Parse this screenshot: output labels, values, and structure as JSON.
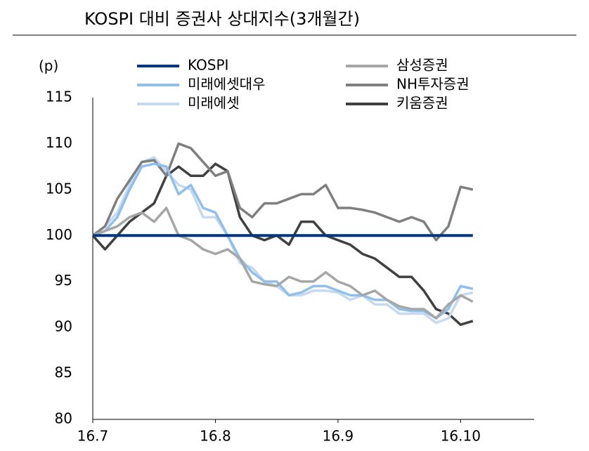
{
  "chart_data": {
    "type": "line",
    "title": "KOSPI 대비 증권사 상대지수(3개월간)",
    "ylabel": "(p)",
    "x": [
      0,
      0.1,
      0.2,
      0.3,
      0.4,
      0.5,
      0.6,
      0.7,
      0.8,
      0.9,
      1.0,
      1.1,
      1.2,
      1.3,
      1.4,
      1.5,
      1.6,
      1.7,
      1.8,
      1.9,
      2.0,
      2.1,
      2.2,
      2.3,
      2.4,
      2.5,
      2.6,
      2.7,
      2.8,
      2.9,
      3.0,
      3.1
    ],
    "xlim": [
      0,
      3.6
    ],
    "xticks": [
      {
        "value": 0,
        "label": "16.7"
      },
      {
        "value": 1,
        "label": "16.8"
      },
      {
        "value": 2,
        "label": "16.9"
      },
      {
        "value": 3,
        "label": "16.10"
      }
    ],
    "ylim": [
      80,
      115
    ],
    "yticks": [
      80,
      85,
      90,
      95,
      100,
      105,
      110,
      115
    ],
    "series": [
      {
        "name": "KOSPI",
        "color": "#003580",
        "values": [
          100,
          100,
          100,
          100,
          100,
          100,
          100,
          100,
          100,
          100,
          100,
          100,
          100,
          100,
          100,
          100,
          100,
          100,
          100,
          100,
          100,
          100,
          100,
          100,
          100,
          100,
          100,
          100,
          100,
          100,
          100,
          100
        ]
      },
      {
        "name": "삼성증권",
        "color": "#a6a6a6",
        "values": [
          100,
          100.5,
          101,
          102,
          102.5,
          101.5,
          103,
          100,
          99.5,
          98.5,
          98,
          98.5,
          97.5,
          95,
          94.7,
          94.5,
          95.5,
          95,
          95,
          96,
          95,
          94.5,
          93.5,
          94,
          93,
          92.3,
          92,
          92,
          91,
          92.5,
          93.5,
          92.8
        ]
      },
      {
        "name": "미래에셋대우",
        "color": "#8fbfea",
        "values": [
          100,
          100.5,
          102,
          105,
          107.5,
          107.8,
          107.5,
          104.5,
          105.5,
          103,
          102.5,
          100,
          97.5,
          96,
          95,
          95,
          93.5,
          93.8,
          94.5,
          94.5,
          94,
          93.5,
          93.5,
          93,
          93,
          92,
          91.8,
          91.8,
          91,
          92,
          94.5,
          94.2
        ]
      },
      {
        "name": "NH투자증권",
        "color": "#7f7f7f",
        "values": [
          100,
          101,
          104,
          106,
          108,
          108.2,
          106.5,
          110,
          109.5,
          108,
          106.5,
          107,
          103,
          102,
          103.5,
          103.5,
          104,
          104.5,
          104.5,
          105.5,
          103,
          103,
          102.8,
          102.5,
          102,
          101.5,
          102,
          101.5,
          99.5,
          101,
          105.3,
          105
        ]
      },
      {
        "name": "미래에셋",
        "color": "#c5d9f1",
        "values": [
          100,
          101,
          102.5,
          105.5,
          108,
          108.5,
          107,
          105.5,
          105,
          102,
          102,
          100,
          97,
          96.5,
          95,
          94.5,
          93.5,
          93.5,
          94,
          94,
          93.8,
          93,
          93.5,
          92.5,
          92.5,
          91.5,
          91.5,
          91.5,
          90.5,
          91,
          93.5,
          93.8
        ]
      },
      {
        "name": "키움증권",
        "color": "#404040",
        "values": [
          100,
          98.5,
          100,
          101.5,
          102.5,
          103.5,
          106.5,
          107.5,
          106.5,
          106.5,
          107.8,
          107,
          102,
          100,
          99.5,
          100,
          99,
          101.5,
          101.5,
          100,
          99.5,
          99,
          98,
          97.5,
          96.5,
          95.5,
          95.5,
          94,
          92,
          91.5,
          90.3,
          90.7
        ]
      }
    ]
  }
}
